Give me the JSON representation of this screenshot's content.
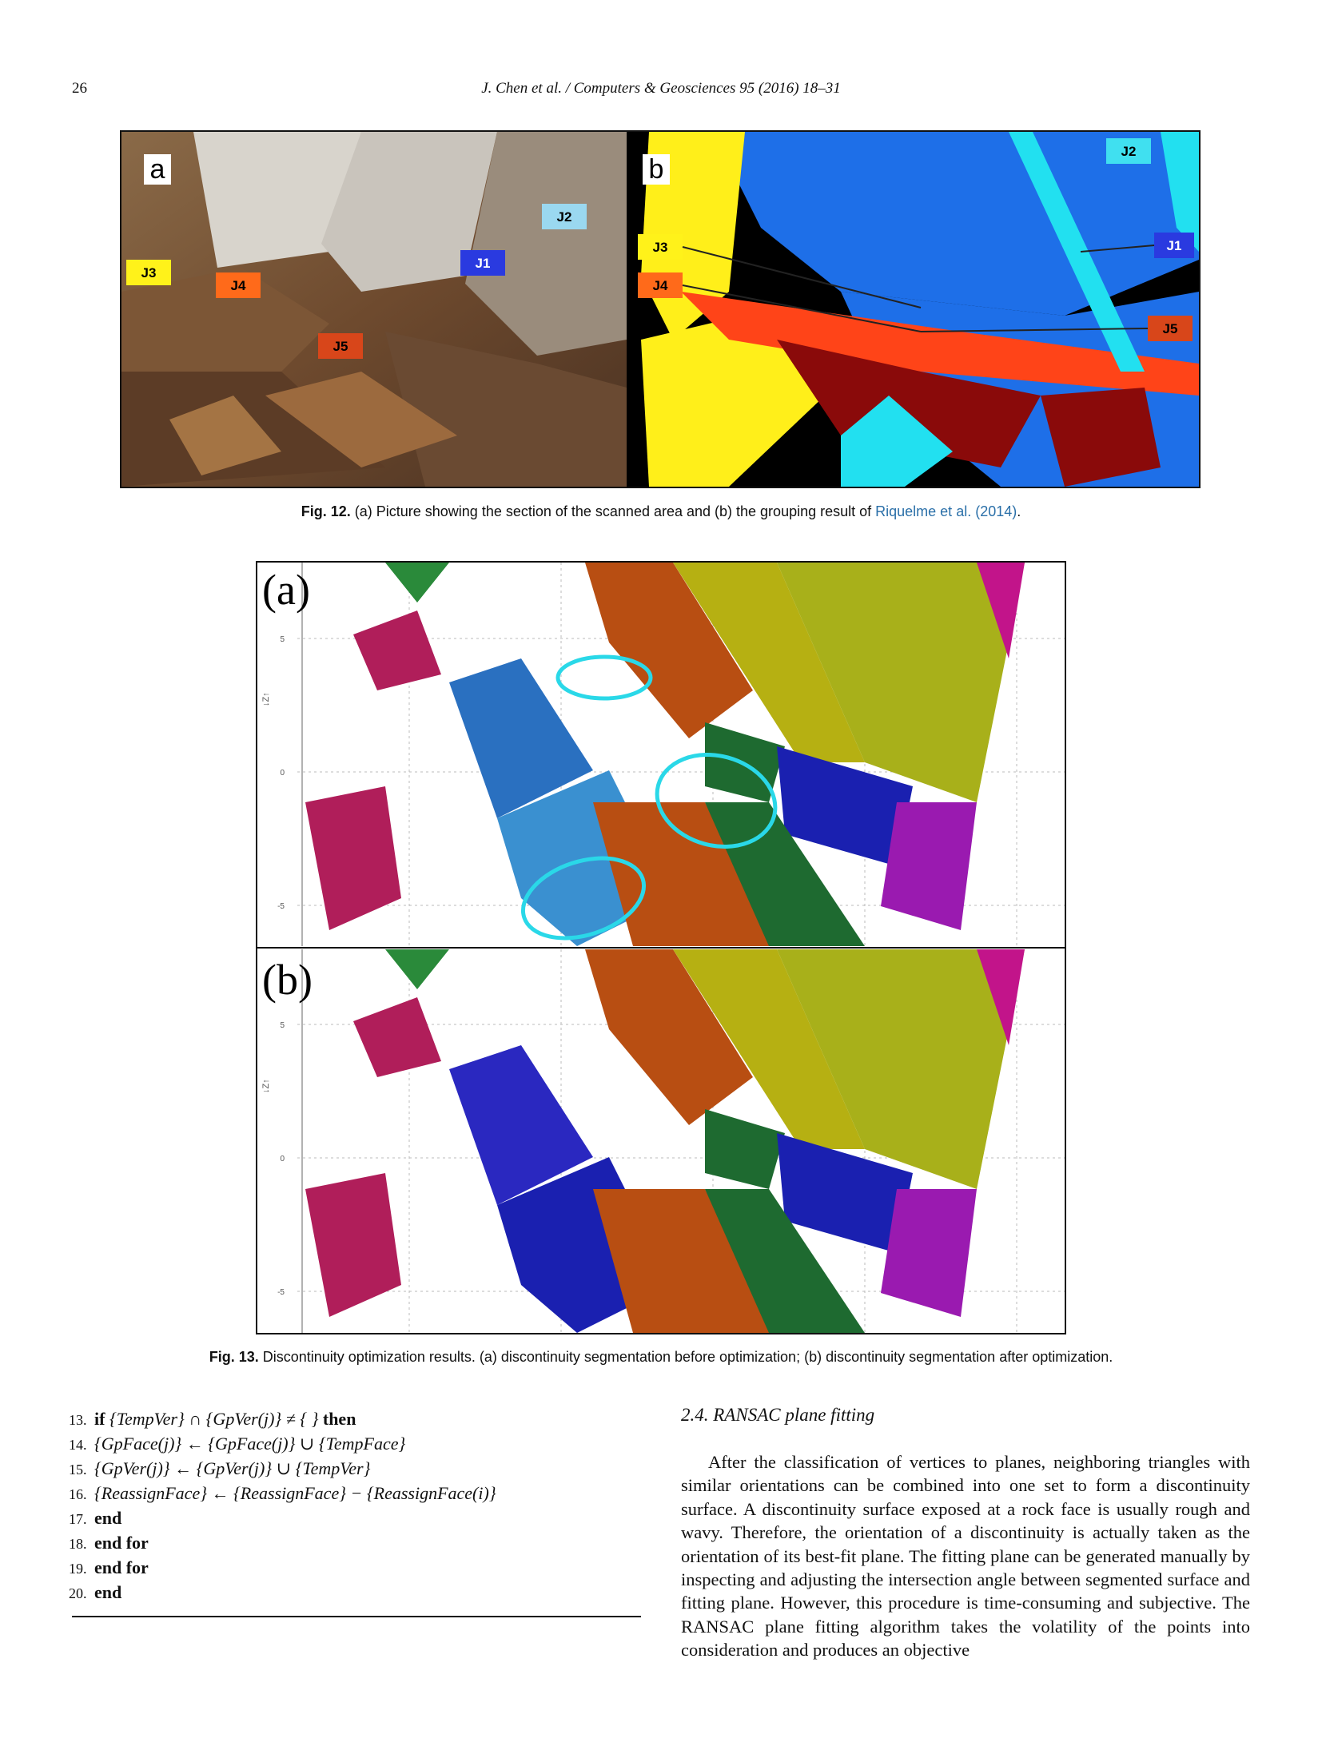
{
  "header": {
    "page_number": "26",
    "journal": "J. Chen et al. / Computers & Geosciences 95 (2016) 18–31"
  },
  "fig12": {
    "panel_a_label": "a",
    "panel_b_label": "b",
    "labels_a": [
      "J3",
      "J4",
      "J5",
      "J1",
      "J2"
    ],
    "labels_b": [
      "J2",
      "J1",
      "J3",
      "J4",
      "J5"
    ],
    "caption_label": "Fig. 12.",
    "caption_text": " (a) Picture showing the section of the scanned area and (b) the grouping result of ",
    "caption_link": "Riquelme et al. (2014)",
    "caption_end": "."
  },
  "fig13": {
    "panel_a_label": "(a)",
    "panel_b_label": "(b)",
    "axis_label": "↓Z↑",
    "ticks": [
      "5",
      "0",
      "-5"
    ],
    "caption_label": "Fig. 13.",
    "caption_text": " Discontinuity optimization results. (a) discontinuity segmentation before optimization; (b) discontinuity segmentation after optimization."
  },
  "algorithm": [
    {
      "num": "13.",
      "parts": [
        {
          "t": "if",
          "k": true
        },
        {
          "t": " {TempVer} ∩ {GpVer(j)} ≠ { } "
        },
        {
          "t": "then",
          "k": true
        }
      ]
    },
    {
      "num": "14.",
      "parts": [
        {
          "t": "{GpFace(j)} ← {GpFace(j)} ∪ {TempFace}"
        }
      ]
    },
    {
      "num": "15.",
      "parts": [
        {
          "t": "{GpVer(j)} ← {GpVer(j)} ∪ {TempVer}"
        }
      ]
    },
    {
      "num": "16.",
      "parts": [
        {
          "t": "{ReassignFace} ← {ReassignFace} − {ReassignFace(i)}"
        }
      ]
    },
    {
      "num": "17.",
      "parts": [
        {
          "t": "end",
          "k": true
        }
      ]
    },
    {
      "num": "18.",
      "parts": [
        {
          "t": "end for",
          "k": true
        }
      ]
    },
    {
      "num": "19.",
      "parts": [
        {
          "t": "end for",
          "k": true
        }
      ]
    },
    {
      "num": "20.",
      "parts": [
        {
          "t": "end",
          "k": true
        }
      ]
    }
  ],
  "section": {
    "title": "2.4.  RANSAC plane fitting",
    "paragraph": "After the classification of vertices to planes, neighboring triangles with similar orientations can be combined into one set to form a discontinuity surface. A discontinuity surface exposed at a rock face is usually rough and wavy. Therefore, the orientation of a discontinuity is actually taken as the orientation of its best-fit plane. The fitting plane can be generated manually by inspecting and adjusting the intersection angle between segmented surface and fitting plane. However, this procedure is time-consuming and subjective. The RANSAC plane fitting algorithm takes the volatility of the points into consideration and produces an objective"
  }
}
